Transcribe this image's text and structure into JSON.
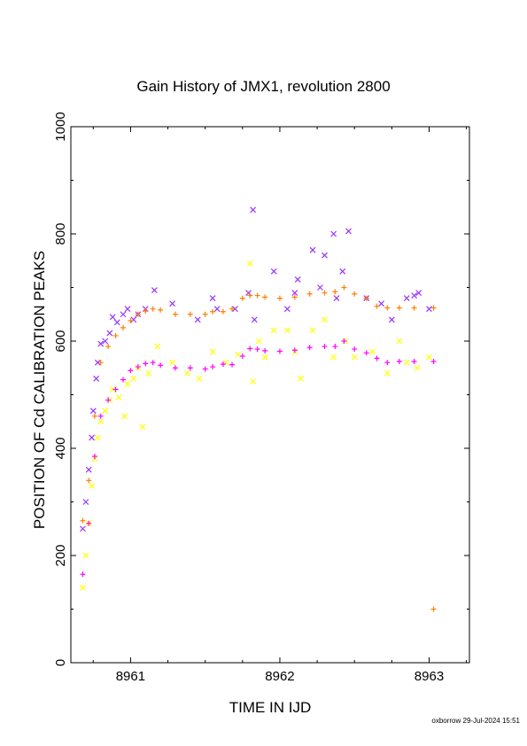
{
  "chart_data": {
    "type": "scatter",
    "title": "Gain History of JMX1, revolution 2800",
    "xlabel": "TIME IN IJD",
    "ylabel": "POSITION OF Cd CALIBRATION PEAKS",
    "xlim": [
      8960.6,
      8963.27
    ],
    "ylim": [
      0,
      1000
    ],
    "xticks": [
      "8961",
      "8962",
      "8963"
    ],
    "yticks": [
      "0",
      "200",
      "400",
      "600",
      "800",
      "1000"
    ],
    "grid": false,
    "legend": "none",
    "series": [
      {
        "marker": "x",
        "color": "#9933ff",
        "x": [
          8960.68,
          8960.7,
          8960.72,
          8960.74,
          8960.75,
          8960.77,
          8960.78,
          8960.8,
          8960.83,
          8960.86,
          8960.88,
          8960.91,
          8960.95,
          8960.98,
          8961.02,
          8961.05,
          8961.1,
          8961.16,
          8961.28,
          8961.45,
          8961.55,
          8961.58,
          8961.7,
          8961.79,
          8961.82,
          8961.83,
          8961.96,
          8962.05,
          8962.1,
          8962.12,
          8962.22,
          8962.27,
          8962.3,
          8962.36,
          8962.38,
          8962.42,
          8962.46,
          8962.58,
          8962.68,
          8962.75,
          8962.85,
          8962.9,
          8962.93,
          8963.0
        ],
        "y": [
          250,
          300,
          360,
          420,
          470,
          530,
          560,
          595,
          600,
          615,
          645,
          635,
          650,
          660,
          640,
          650,
          660,
          695,
          670,
          640,
          680,
          660,
          660,
          690,
          845,
          640,
          730,
          660,
          690,
          715,
          770,
          700,
          760,
          800,
          680,
          730,
          805,
          680,
          670,
          640,
          680,
          685,
          690,
          660
        ]
      },
      {
        "marker": "x",
        "color": "#ffff00",
        "x": [
          8960.68,
          8960.7,
          8960.72,
          8960.74,
          8960.76,
          8960.78,
          8960.8,
          8960.83,
          8960.86,
          8960.88,
          8960.92,
          8960.96,
          8960.98,
          8961.02,
          8961.05,
          8961.08,
          8961.12,
          8961.18,
          8961.28,
          8961.38,
          8961.46,
          8961.55,
          8961.64,
          8961.72,
          8961.8,
          8961.82,
          8961.86,
          8961.9,
          8961.96,
          8962.05,
          8962.1,
          8962.14,
          8962.22,
          8962.3,
          8962.36,
          8962.44,
          8962.5,
          8962.62,
          8962.72,
          8962.8,
          8962.85,
          8962.92,
          8963.0
        ],
        "y": [
          140,
          200,
          260,
          330,
          380,
          420,
          450,
          470,
          490,
          510,
          495,
          460,
          520,
          530,
          550,
          440,
          540,
          590,
          560,
          540,
          530,
          580,
          560,
          575,
          745,
          525,
          600,
          570,
          620,
          620,
          580,
          530,
          620,
          640,
          570,
          600,
          570,
          580,
          540,
          600,
          560,
          550,
          570
        ]
      },
      {
        "marker": "+",
        "color": "#ff8000",
        "x": [
          8960.68,
          8960.72,
          8960.76,
          8960.8,
          8960.85,
          8960.9,
          8960.95,
          8961.0,
          8961.05,
          8961.1,
          8961.15,
          8961.2,
          8961.3,
          8961.4,
          8961.5,
          8961.55,
          8961.62,
          8961.68,
          8961.75,
          8961.8,
          8961.85,
          8961.9,
          8962.0,
          8962.1,
          8962.2,
          8962.3,
          8962.37,
          8962.43,
          8962.5,
          8962.58,
          8962.65,
          8962.72,
          8962.8,
          8962.9,
          8963.03
        ],
        "y": [
          265,
          340,
          460,
          560,
          590,
          610,
          625,
          638,
          650,
          656,
          660,
          658,
          650,
          650,
          650,
          655,
          655,
          660,
          680,
          685,
          685,
          682,
          680,
          682,
          688,
          690,
          692,
          700,
          688,
          680,
          665,
          662,
          662,
          662,
          662
        ]
      },
      {
        "marker": "+",
        "color": "#ff00ff",
        "x": [
          8960.68,
          8960.72,
          8960.76,
          8960.8,
          8960.85,
          8960.9,
          8960.95,
          8961.0,
          8961.05,
          8961.1,
          8961.15,
          8961.2,
          8961.3,
          8961.4,
          8961.5,
          8961.55,
          8961.62,
          8961.68,
          8961.75,
          8961.8,
          8961.85,
          8961.9,
          8962.0,
          8962.1,
          8962.2,
          8962.3,
          8962.37,
          8962.43,
          8962.5,
          8962.58,
          8962.65,
          8962.72,
          8962.8,
          8962.9,
          8963.03
        ],
        "y": [
          165,
          260,
          385,
          460,
          490,
          510,
          528,
          545,
          552,
          558,
          560,
          555,
          550,
          550,
          548,
          552,
          557,
          556,
          572,
          586,
          585,
          582,
          581,
          583,
          588,
          590,
          590,
          600,
          585,
          578,
          568,
          560,
          562,
          562,
          562
        ]
      },
      {
        "marker": "+",
        "color": "#ff8000",
        "x": [
          8963.03
        ],
        "y": [
          100
        ]
      }
    ]
  },
  "footer": "oxborrow 29-Jul-2024 15:51"
}
